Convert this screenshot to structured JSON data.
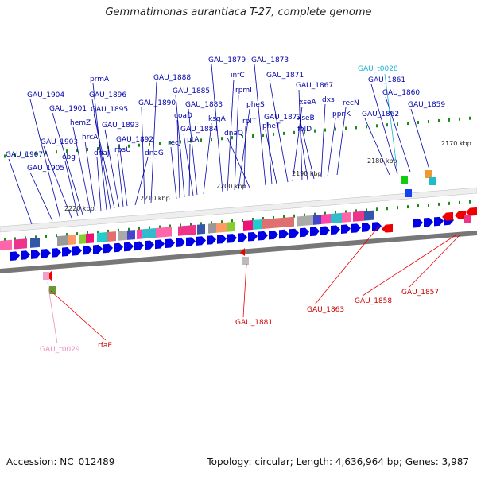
{
  "title": "Gemmatimonas aurantiaca T-27, complete genome",
  "footer": {
    "accession": "Accession: NC_012489",
    "summary": "Topology: circular; Length: 4,636,964 bp; Genes: 3,987"
  },
  "scale_labels": [
    "2170 kbp",
    "2180 kbp",
    "2190 kbp",
    "2200 kbp",
    "2210 kbp",
    "2220 kbp"
  ],
  "gene_labels_top": [
    "GAU_1907",
    "GAU_1905",
    "GAU_1904",
    "GAU_1903",
    "obg",
    "GAU_1901",
    "hemZ",
    "hrcA",
    "dnaJ",
    "prmA",
    "GAU_1896",
    "GAU_1895",
    "GAU_1893",
    "rpsU",
    "GAU_1892",
    "dnaG",
    "GAU_1890",
    "GAU_1888",
    "recJ",
    "coaD",
    "GAU_1885",
    "ptA",
    "GAU_1884",
    "GAU_1883",
    "ksgA",
    "GAU_1879",
    "infC",
    "rpmI",
    "pheS",
    "rplT",
    "dnaQ",
    "GAU_1873",
    "GAU_1872",
    "pheT",
    "GAU_1871",
    "xseA",
    "GAU_1867",
    "folD",
    "xseB",
    "dxs",
    "ppnK",
    "recN",
    "GAU_1862",
    "GAU_1861",
    "GAU_1860",
    "GAU_1859"
  ],
  "trna_labels": [
    "GAU_t0028",
    "GAU_t0029"
  ],
  "gene_labels_bottom": [
    "rfaE",
    "GAU_1881",
    "GAU_1863",
    "GAU_1858",
    "GAU_1857"
  ],
  "colors": {
    "forward": "#0000e6",
    "reverse": "#ee0000",
    "tick": "#1a8a1a",
    "label": "#0000aa",
    "trna_top": "#19b4d2",
    "trna_bottom": "#e890c0"
  }
}
